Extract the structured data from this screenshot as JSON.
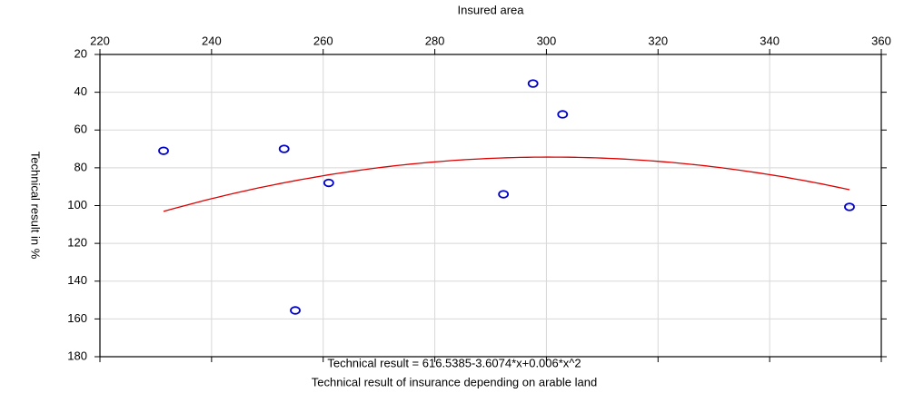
{
  "chart_data": {
    "type": "scatter",
    "title": "Insured area",
    "ylabel": "Technical result in %",
    "equation": "Technical result = 616.5385-3.6074*x+0.006*x^2",
    "caption": "Technical result of insurance depending on arable land",
    "x": [
      231.4,
      253,
      255,
      261,
      292.3,
      297.6,
      302.9,
      354.3
    ],
    "values": [
      71,
      70,
      155.5,
      88,
      94,
      35.4,
      51.7,
      100.7
    ],
    "color": "#0000cc",
    "fit": {
      "coefficients": [
        616.5385,
        -3.6074,
        0.006
      ],
      "color": "#dd0000"
    },
    "xlim": [
      220,
      360
    ],
    "xticks": [
      220,
      240,
      260,
      280,
      300,
      320,
      340,
      360
    ],
    "ylim": [
      20,
      180
    ],
    "yticks": [
      20,
      40,
      60,
      80,
      100,
      120,
      140,
      160,
      180
    ],
    "y_inverted": true,
    "grid": true
  }
}
